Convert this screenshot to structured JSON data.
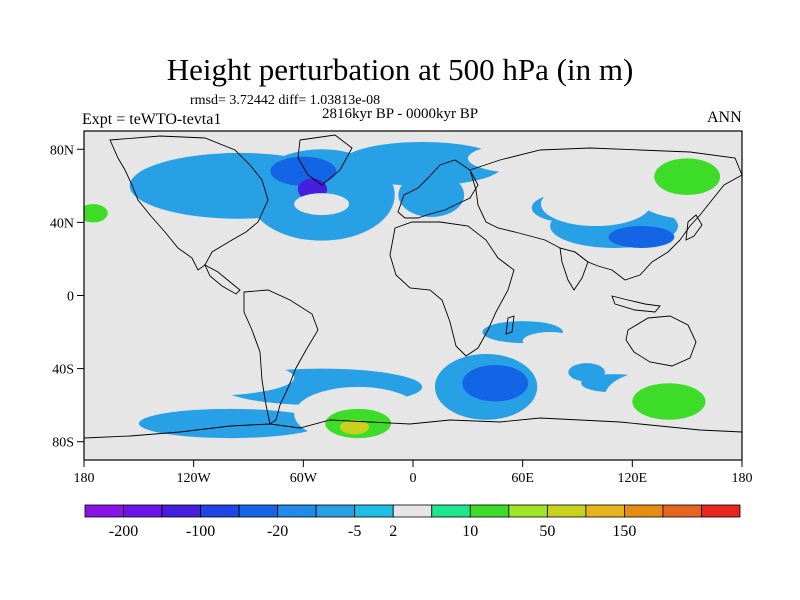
{
  "title": "Height perturbation at 500 hPa (in m)",
  "stats": "rmsd= 3.72442 diff= 1.03813e-08",
  "period": "2816kyr BP - 0000kyr BP",
  "experiment": "Expt = teWTO-tevta1",
  "season": "ANN",
  "map": {
    "projection": "cylindrical-equidistant",
    "lon_range": [
      -180,
      180
    ],
    "lat_range": [
      -90,
      90
    ],
    "x_ticks": [
      {
        "value": -180,
        "label": "180"
      },
      {
        "value": -120,
        "label": "120W"
      },
      {
        "value": -60,
        "label": "60W"
      },
      {
        "value": 0,
        "label": "0"
      },
      {
        "value": 60,
        "label": "60E"
      },
      {
        "value": 120,
        "label": "120E"
      },
      {
        "value": 180,
        "label": "180"
      }
    ],
    "y_ticks": [
      {
        "value": 80,
        "label": "80N"
      },
      {
        "value": 40,
        "label": "40N"
      },
      {
        "value": 0,
        "label": "0"
      },
      {
        "value": -40,
        "label": "40S"
      },
      {
        "value": -80,
        "label": "80S"
      }
    ],
    "background_color": "#e6e6e6",
    "coastline_color": "#000000"
  },
  "colorbar": {
    "colors": [
      "#8a14e6",
      "#6e14e6",
      "#461ede",
      "#1e46e6",
      "#1464e6",
      "#1e8ce6",
      "#28a0e6",
      "#1ebee6",
      "#e6e6e6",
      "#1ee68c",
      "#3cdc28",
      "#a0e628",
      "#c8d21e",
      "#e6b41e",
      "#e68c14",
      "#e6641e",
      "#e6281e"
    ],
    "labels": [
      "-200",
      "-100",
      "-20",
      "-5",
      "2",
      "10",
      "50",
      "150"
    ],
    "label_after_box": [
      1,
      3,
      5,
      7,
      8,
      10,
      12,
      14
    ]
  },
  "shading_regions": [
    {
      "lon": -95,
      "lat": 60,
      "rx": 60,
      "ry": 18,
      "level": "-5"
    },
    {
      "lon": -50,
      "lat": 55,
      "rx": 40,
      "ry": 25,
      "level": "-5"
    },
    {
      "lon": 5,
      "lat": 72,
      "rx": 45,
      "ry": 12,
      "level": "-5"
    },
    {
      "lon": 10,
      "lat": 55,
      "rx": 18,
      "ry": 12,
      "level": "-5"
    },
    {
      "lon": -60,
      "lat": 68,
      "rx": 18,
      "ry": 8,
      "level": "-20"
    },
    {
      "lon": -55,
      "lat": 58,
      "rx": 8,
      "ry": 6,
      "level": "-100"
    },
    {
      "lon": 110,
      "lat": 38,
      "rx": 35,
      "ry": 12,
      "level": "-5"
    },
    {
      "lon": 85,
      "lat": 48,
      "rx": 20,
      "ry": 8,
      "level": "-5"
    },
    {
      "lon": 125,
      "lat": 32,
      "rx": 18,
      "ry": 6,
      "level": "-20"
    },
    {
      "lon": -50,
      "lat": -50,
      "rx": 55,
      "ry": 10,
      "level": "-5"
    },
    {
      "lon": -100,
      "lat": -70,
      "rx": 50,
      "ry": 8,
      "level": "-5"
    },
    {
      "lon": 40,
      "lat": -50,
      "rx": 28,
      "ry": 18,
      "level": "-5"
    },
    {
      "lon": 45,
      "lat": -48,
      "rx": 18,
      "ry": 10,
      "level": "-20"
    },
    {
      "lon": 60,
      "lat": -20,
      "rx": 22,
      "ry": 6,
      "level": "-5"
    },
    {
      "lon": 95,
      "lat": -42,
      "rx": 10,
      "ry": 5,
      "level": "-5"
    },
    {
      "lon": 110,
      "lat": -48,
      "rx": 18,
      "ry": 5,
      "level": "-5"
    },
    {
      "lon": 100,
      "lat": 50,
      "rx": 30,
      "ry": 12,
      "level": "2"
    },
    {
      "lon": 60,
      "lat": 75,
      "rx": 30,
      "ry": 8,
      "level": "2"
    },
    {
      "lon": 150,
      "lat": 64,
      "rx": 35,
      "ry": 22,
      "level": "2"
    },
    {
      "lon": 150,
      "lat": 65,
      "rx": 18,
      "ry": 10,
      "level": "10"
    },
    {
      "lon": -170,
      "lat": 45,
      "rx": 18,
      "ry": 15,
      "level": "2"
    },
    {
      "lon": -175,
      "lat": 45,
      "rx": 8,
      "ry": 5,
      "level": "10"
    },
    {
      "lon": -50,
      "lat": 50,
      "rx": 15,
      "ry": 6,
      "level": "2"
    },
    {
      "lon": 5,
      "lat": 28,
      "rx": 8,
      "ry": 4,
      "level": "2"
    },
    {
      "lon": 35,
      "lat": 28,
      "rx": 12,
      "ry": 4,
      "level": "2"
    },
    {
      "lon": -160,
      "lat": -32,
      "rx": 28,
      "ry": 12,
      "level": "2"
    },
    {
      "lon": -115,
      "lat": -45,
      "rx": 50,
      "ry": 10,
      "level": "2"
    },
    {
      "lon": -30,
      "lat": -65,
      "rx": 35,
      "ry": 15,
      "level": "2"
    },
    {
      "lon": -30,
      "lat": -70,
      "rx": 18,
      "ry": 8,
      "level": "10"
    },
    {
      "lon": -32,
      "lat": -72,
      "rx": 8,
      "ry": 4,
      "level": "50"
    },
    {
      "lon": 140,
      "lat": -55,
      "rx": 35,
      "ry": 15,
      "level": "2"
    },
    {
      "lon": 140,
      "lat": -58,
      "rx": 20,
      "ry": 10,
      "level": "10"
    },
    {
      "lon": 75,
      "lat": -25,
      "rx": 15,
      "ry": 5,
      "level": "2"
    },
    {
      "lon": 5,
      "lat": -22,
      "rx": 8,
      "ry": 5,
      "level": "2"
    }
  ]
}
